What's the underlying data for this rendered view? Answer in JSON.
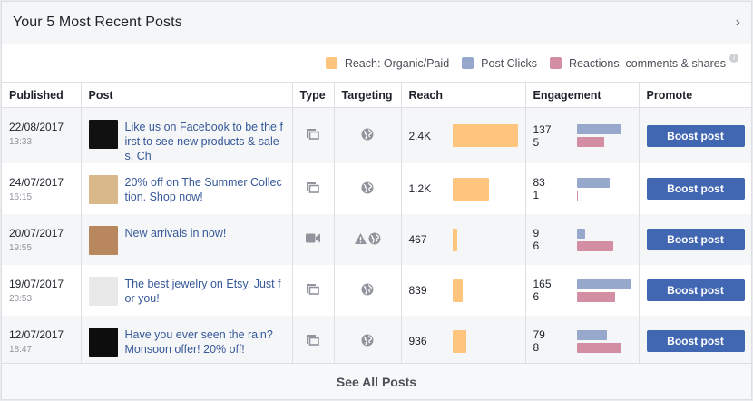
{
  "header": {
    "title": "Your 5 Most Recent Posts",
    "chevron": "›"
  },
  "legend": {
    "items": [
      {
        "label": "Reach: Organic/Paid",
        "color": "#ffc57f"
      },
      {
        "label": "Post Clicks",
        "color": "#96a8cb"
      },
      {
        "label": "Reactions, comments & shares",
        "color": "#d38ea3"
      }
    ],
    "info": "i"
  },
  "columns": [
    "Published",
    "Post",
    "Type",
    "Targeting",
    "Reach",
    "Engagement",
    "Promote"
  ],
  "posts": [
    {
      "date": "22/08/2017",
      "time": "13:33",
      "text": "Like us on Facebook to be the first to see new products & sales. Ch",
      "type": "multi-photo-icon",
      "targeting": [
        "globe-icon"
      ],
      "reach": "2.4K",
      "reach_w": 72,
      "clicks": "137",
      "reactions": "5",
      "clicks_w": 49,
      "reactions_w": 30,
      "thumb": "#111111",
      "boost": "Boost post"
    },
    {
      "date": "24/07/2017",
      "time": "16:15",
      "text": "20% off on The Summer Collection. Shop now!",
      "type": "multi-photo-icon",
      "targeting": [
        "globe-icon"
      ],
      "reach": "1.2K",
      "reach_w": 40,
      "clicks": "83",
      "reactions": "1",
      "clicks_w": 36,
      "reactions_w": 1,
      "thumb": "#d9b88a",
      "boost": "Boost post"
    },
    {
      "date": "20/07/2017",
      "time": "19:55",
      "text": "New arrivals in now!",
      "type": "video-icon",
      "targeting": [
        "warning-icon",
        "globe-icon"
      ],
      "reach": "467",
      "reach_w": 5,
      "clicks": "9",
      "reactions": "6",
      "clicks_w": 9,
      "reactions_w": 40,
      "thumb": "#b9875e",
      "boost": "Boost post"
    },
    {
      "date": "19/07/2017",
      "time": "20:53",
      "text": "The best jewelry on Etsy. Just for you!",
      "type": "multi-photo-icon",
      "targeting": [
        "globe-icon"
      ],
      "reach": "839",
      "reach_w": 11,
      "clicks": "165",
      "reactions": "6",
      "clicks_w": 60,
      "reactions_w": 42,
      "thumb": "#e8e8e8",
      "boost": "Boost post"
    },
    {
      "date": "12/07/2017",
      "time": "18:47",
      "text": "Have you ever seen the rain? Monsoon offer! 20% off!",
      "type": "multi-photo-icon",
      "targeting": [
        "globe-icon"
      ],
      "reach": "936",
      "reach_w": 15,
      "clicks": "79",
      "reactions": "8",
      "clicks_w": 33,
      "reactions_w": 49,
      "thumb": "#0d0d0d",
      "boost": "Boost post"
    }
  ],
  "footer": {
    "label": "See All Posts"
  }
}
